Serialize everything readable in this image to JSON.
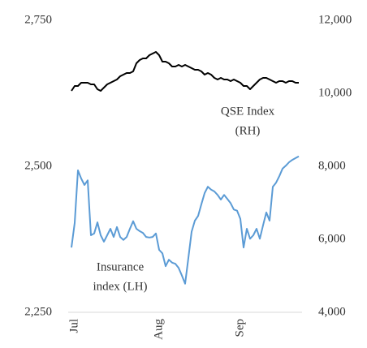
{
  "chart_data": {
    "type": "line",
    "categories": [
      null,
      "Jul",
      null,
      null,
      null,
      null,
      null,
      null,
      null,
      null,
      null,
      null,
      null,
      null,
      null,
      null,
      null,
      null,
      null,
      null,
      null,
      null,
      null,
      null,
      null,
      null,
      null,
      "Aug",
      null,
      null,
      null,
      null,
      null,
      null,
      null,
      null,
      null,
      null,
      null,
      null,
      null,
      null,
      null,
      null,
      null,
      null,
      null,
      null,
      null,
      null,
      null,
      null,
      "Sep",
      null,
      null,
      null,
      null,
      null,
      null,
      null,
      null,
      null,
      null,
      null,
      null,
      null,
      null,
      null,
      null,
      null,
      null
    ],
    "series": [
      {
        "color": "#5b9bd5",
        "axis": "y",
        "values": [
          2361,
          2403,
          2493,
          2479,
          2468,
          2476,
          2382,
          2385,
          2404,
          2382,
          2371,
          2382,
          2393,
          2379,
          2396,
          2379,
          2374,
          2379,
          2393,
          2406,
          2393,
          2389,
          2386,
          2379,
          2378,
          2379,
          2385,
          2357,
          2351,
          2329,
          2340,
          2335,
          2333,
          2326,
          2313,
          2299,
          2343,
          2388,
          2407,
          2415,
          2435,
          2454,
          2465,
          2460,
          2457,
          2451,
          2443,
          2451,
          2444,
          2437,
          2426,
          2424,
          2410,
          2361,
          2393,
          2376,
          2382,
          2393,
          2376,
          2399,
          2421,
          2407,
          2465,
          2472,
          2483,
          2496,
          2501,
          2507,
          2511,
          2514,
          2517
        ]
      },
      {
        "color": "#000000",
        "axis": "y2",
        "values": [
          10067,
          10200,
          10200,
          10289,
          10289,
          10289,
          10244,
          10244,
          10111,
          10067,
          10156,
          10244,
          10289,
          10333,
          10378,
          10467,
          10511,
          10556,
          10556,
          10600,
          10822,
          10911,
          10956,
          10956,
          11044,
          11089,
          11133,
          11044,
          10867,
          10867,
          10822,
          10733,
          10733,
          10778,
          10733,
          10778,
          10733,
          10689,
          10644,
          10644,
          10600,
          10511,
          10556,
          10511,
          10422,
          10378,
          10422,
          10378,
          10378,
          10333,
          10378,
          10333,
          10289,
          10200,
          10200,
          10111,
          10200,
          10289,
          10378,
          10422,
          10422,
          10378,
          10333,
          10289,
          10333,
          10333,
          10289,
          10333,
          10333,
          10289,
          10289
        ]
      }
    ],
    "ylim": [
      2250,
      2750
    ],
    "yticks": [
      {
        "value": 2250,
        "label": "2,250"
      },
      {
        "value": 2500,
        "label": "2,500"
      },
      {
        "value": 2750,
        "label": "2,750"
      }
    ],
    "y2lim": [
      4000,
      12000
    ],
    "y2ticks": [
      {
        "value": 4000,
        "label": "4,000"
      },
      {
        "value": 6000,
        "label": "6,000"
      },
      {
        "value": 8000,
        "label": "8,000"
      },
      {
        "value": 10000,
        "label": "10,000"
      },
      {
        "value": 12000,
        "label": "12,000"
      }
    ],
    "annotations": [
      {
        "series": 1,
        "lines": [
          "QSE Index",
          "(RH)"
        ]
      },
      {
        "series": 0,
        "lines": [
          "Insurance",
          "index (LH)"
        ]
      }
    ]
  }
}
